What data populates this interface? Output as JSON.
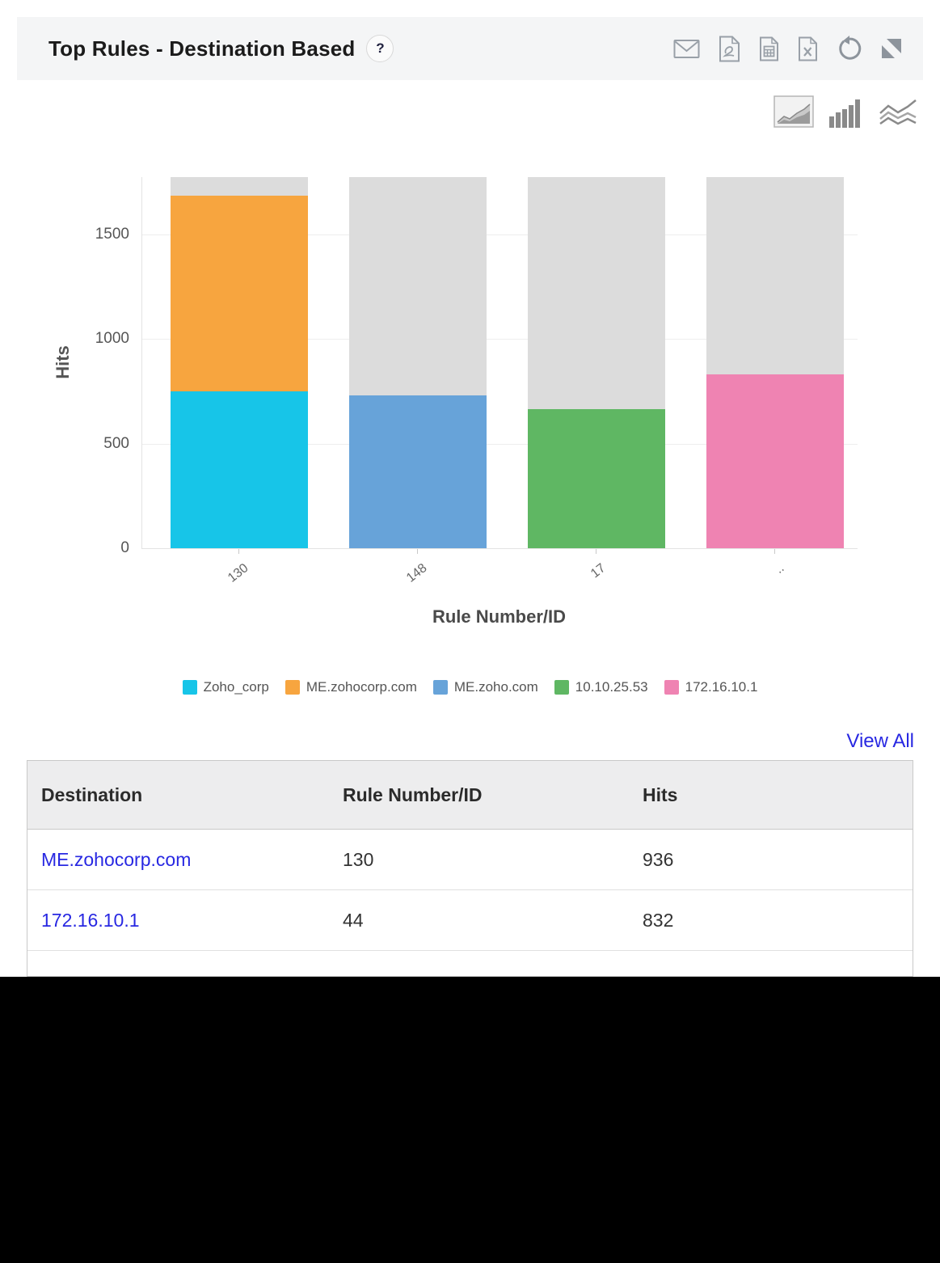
{
  "header": {
    "title": "Top Rules - Destination Based",
    "help": "?",
    "toolbar_icons": [
      "email",
      "pdf",
      "csv",
      "excel",
      "refresh",
      "resize"
    ]
  },
  "chart_switcher": {
    "options": [
      "area-chart",
      "bar-chart",
      "line-chart"
    ],
    "selected": "area-chart"
  },
  "chart_data": {
    "type": "bar",
    "stacked": true,
    "title": "",
    "xlabel": "Rule Number/ID",
    "ylabel": "Hits",
    "ylim": [
      0,
      1775
    ],
    "yticks": [
      0,
      500,
      1000,
      1500
    ],
    "grid": true,
    "legend_position": "bottom",
    "track_color": "#dcdcdc",
    "categories": [
      "130",
      "148",
      "17",
      ".."
    ],
    "series": [
      {
        "name": "Zoho_corp",
        "color": "#17c5e8",
        "values": [
          750,
          0,
          0,
          0
        ]
      },
      {
        "name": "ME.zohocorp.com",
        "color": "#f7a53f",
        "values": [
          936,
          0,
          0,
          0
        ]
      },
      {
        "name": "ME.zoho.com",
        "color": "#67a3d9",
        "values": [
          0,
          730,
          0,
          0
        ]
      },
      {
        "name": "10.10.25.53",
        "color": "#5fb763",
        "values": [
          0,
          0,
          665,
          0
        ]
      },
      {
        "name": "172.16.10.1",
        "color": "#ef83b2",
        "values": [
          0,
          0,
          0,
          832
        ]
      }
    ]
  },
  "view_all_label": "View All",
  "table": {
    "columns": [
      "Destination",
      "Rule Number/ID",
      "Hits"
    ],
    "rows": [
      [
        "ME.zohocorp.com",
        "130",
        "936"
      ],
      [
        "172.16.10.1",
        "44",
        "832"
      ]
    ]
  },
  "colors": {
    "link_blue": "#2828e2",
    "icon_gray": "#99a0a8",
    "header_bg": "#f4f5f6",
    "bar_track": "#dcdcdc"
  }
}
